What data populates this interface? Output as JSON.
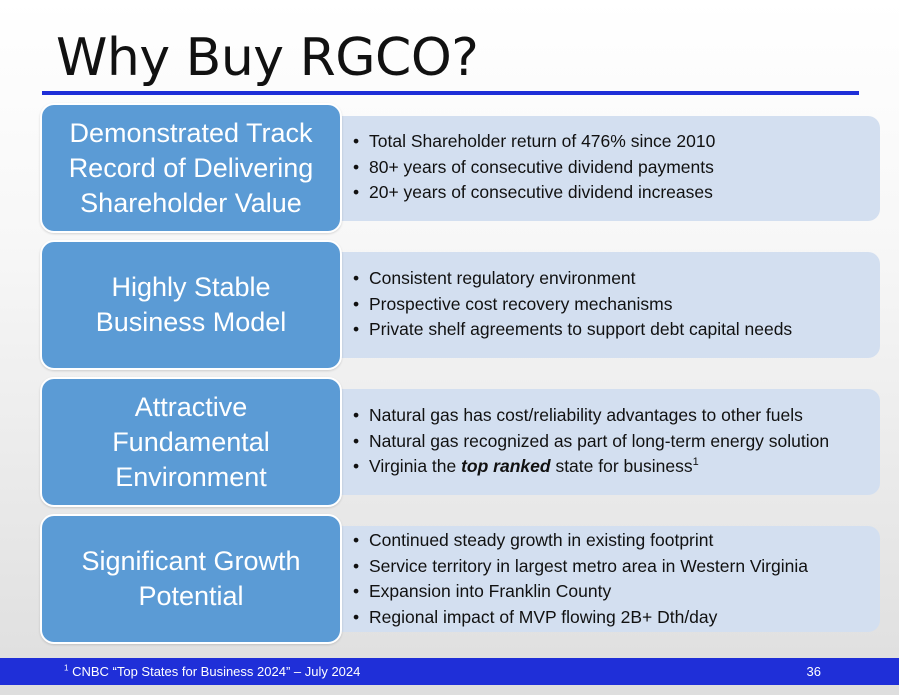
{
  "slide": {
    "title": "Why Buy RGCO?",
    "sections": [
      {
        "heading_lines": [
          "Demonstrated Track",
          "Record of Delivering",
          "Shareholder Value"
        ],
        "bullets": [
          {
            "text": "Total Shareholder return of 476% since 2010"
          },
          {
            "text": "80+ years of consecutive dividend payments"
          },
          {
            "text": "20+ years of consecutive dividend increases"
          }
        ]
      },
      {
        "heading_lines": [
          "Highly Stable",
          "Business Model"
        ],
        "bullets": [
          {
            "text": "Consistent regulatory environment"
          },
          {
            "text": "Prospective cost recovery mechanisms"
          },
          {
            "text": "Private shelf agreements to support debt capital needs"
          }
        ]
      },
      {
        "heading_lines": [
          "Attractive",
          "Fundamental",
          "Environment"
        ],
        "bullets": [
          {
            "text": "Natural gas has cost/reliability advantages to other fuels"
          },
          {
            "text": "Natural gas recognized as part of long-term energy solution"
          },
          {
            "before": "Virginia the ",
            "emphasis": "top ranked",
            "after": " state for business",
            "sup": "1"
          }
        ]
      },
      {
        "heading_lines": [
          "Significant Growth",
          "Potential"
        ],
        "bullets": [
          {
            "text": "Continued steady growth in existing footprint"
          },
          {
            "text": "Service territory in largest metro area in Western Virginia"
          },
          {
            "text": "Expansion into Franklin County"
          },
          {
            "text": "Regional impact of MVP flowing 2B+ Dth/day"
          }
        ]
      }
    ]
  },
  "footer": {
    "footnote_marker": "1",
    "footnote": " CNBC “Top States for Business 2024” – July 2024",
    "page_number": "36"
  },
  "colors": {
    "heading_box": "#5b9bd5",
    "bullet_panel": "#d3dff0",
    "accent_bar": "#1f2fd8"
  }
}
